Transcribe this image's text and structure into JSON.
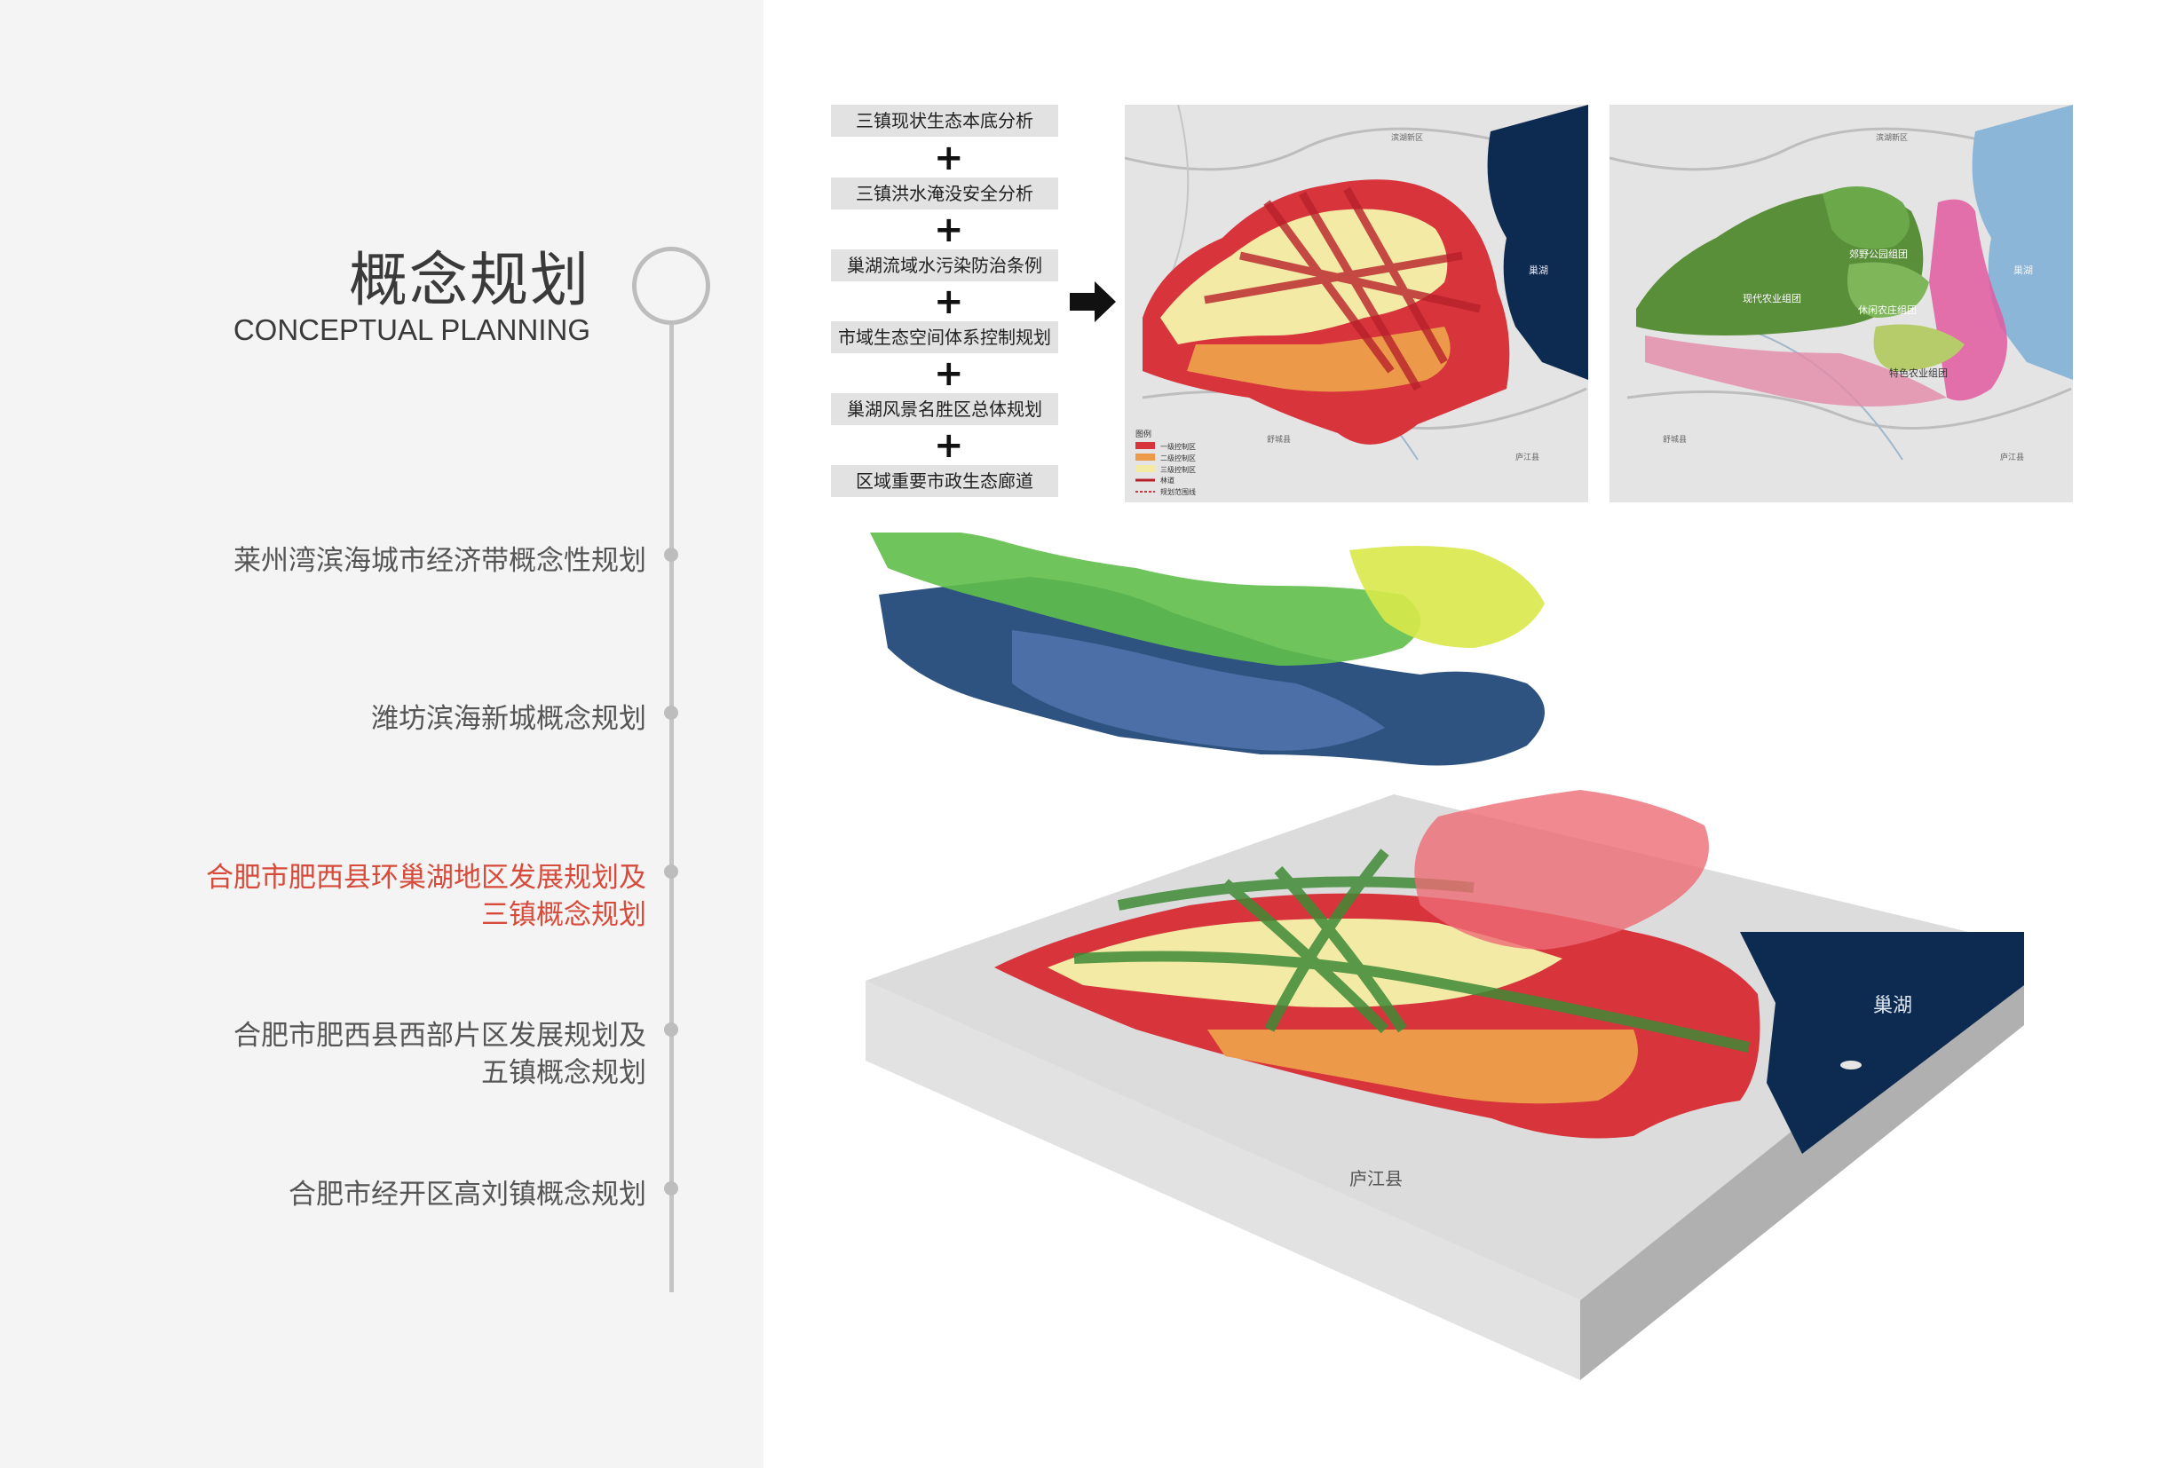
{
  "sidebar": {
    "title_cn": "概念规划",
    "title_en": "CONCEPTUAL PLANNING",
    "items": [
      {
        "lines": [
          "莱州湾滨海城市经济带概念性规划"
        ],
        "active": false
      },
      {
        "lines": [
          "潍坊滨海新城概念规划"
        ],
        "active": false
      },
      {
        "lines": [
          "合肥市肥西县环巢湖地区发展规划及",
          "三镇概念规划"
        ],
        "active": true
      },
      {
        "lines": [
          "合肥市肥西县西部片区发展规划及",
          "五镇概念规划"
        ],
        "active": false
      },
      {
        "lines": [
          "合肥市经开区高刘镇概念规划"
        ],
        "active": false
      }
    ]
  },
  "flow": {
    "steps": [
      "三镇现状生态本底分析",
      "三镇洪水淹没安全分析",
      "巢湖流域水污染防治条例",
      "市域生态空间体系控制规划",
      "巢湖风景名胜区总体规划",
      "区域重要市政生态廊道"
    ],
    "plus": "+"
  },
  "map_left": {
    "legend_title": "图例",
    "legend": [
      "一级控制区",
      "二级控制区",
      "三级控制区",
      "林道",
      "规划范围线"
    ],
    "labels": [
      "巢湖",
      "滨湖新区",
      "舒城县",
      "庐江县"
    ]
  },
  "map_right": {
    "zones": [
      "郊野公园组团",
      "现代农业组团",
      "休闲农庄组团",
      "特色农业组团"
    ],
    "labels": [
      "巢湖",
      "滨湖新区",
      "舒城县",
      "庐江县"
    ]
  },
  "model_3d": {
    "labels": [
      "巢湖",
      "庐江县"
    ]
  },
  "colors": {
    "active": "#d84a3a",
    "lake": "#0d2a50",
    "control1": "#d7343c",
    "control2": "#ec9a4a",
    "control3": "#f3eaa6",
    "green": "#5fbf4a"
  }
}
